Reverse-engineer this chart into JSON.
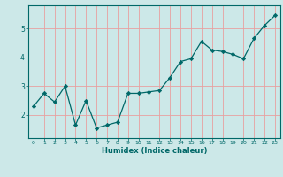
{
  "x": [
    0,
    1,
    2,
    3,
    4,
    5,
    6,
    7,
    8,
    9,
    10,
    11,
    12,
    13,
    14,
    15,
    16,
    17,
    18,
    19,
    20,
    21,
    22,
    23
  ],
  "y": [
    2.3,
    2.75,
    2.45,
    3.0,
    1.65,
    2.5,
    1.55,
    1.65,
    1.75,
    2.75,
    2.75,
    2.8,
    2.85,
    3.3,
    3.85,
    3.95,
    4.55,
    4.25,
    4.2,
    4.1,
    3.95,
    4.65,
    5.1,
    5.45
  ],
  "title": "",
  "xlabel": "Humidex (Indice chaleur)",
  "ylabel": "",
  "xlim": [
    -0.5,
    23.5
  ],
  "ylim": [
    1.2,
    5.8
  ],
  "yticks": [
    2,
    3,
    4,
    5
  ],
  "xticks": [
    0,
    1,
    2,
    3,
    4,
    5,
    6,
    7,
    8,
    9,
    10,
    11,
    12,
    13,
    14,
    15,
    16,
    17,
    18,
    19,
    20,
    21,
    22,
    23
  ],
  "line_color": "#006868",
  "marker_color": "#006868",
  "bg_color": "#cce8e8",
  "grid_color": "#e8a0a0",
  "axis_color": "#006868",
  "tick_color": "#006868",
  "label_color": "#006868"
}
